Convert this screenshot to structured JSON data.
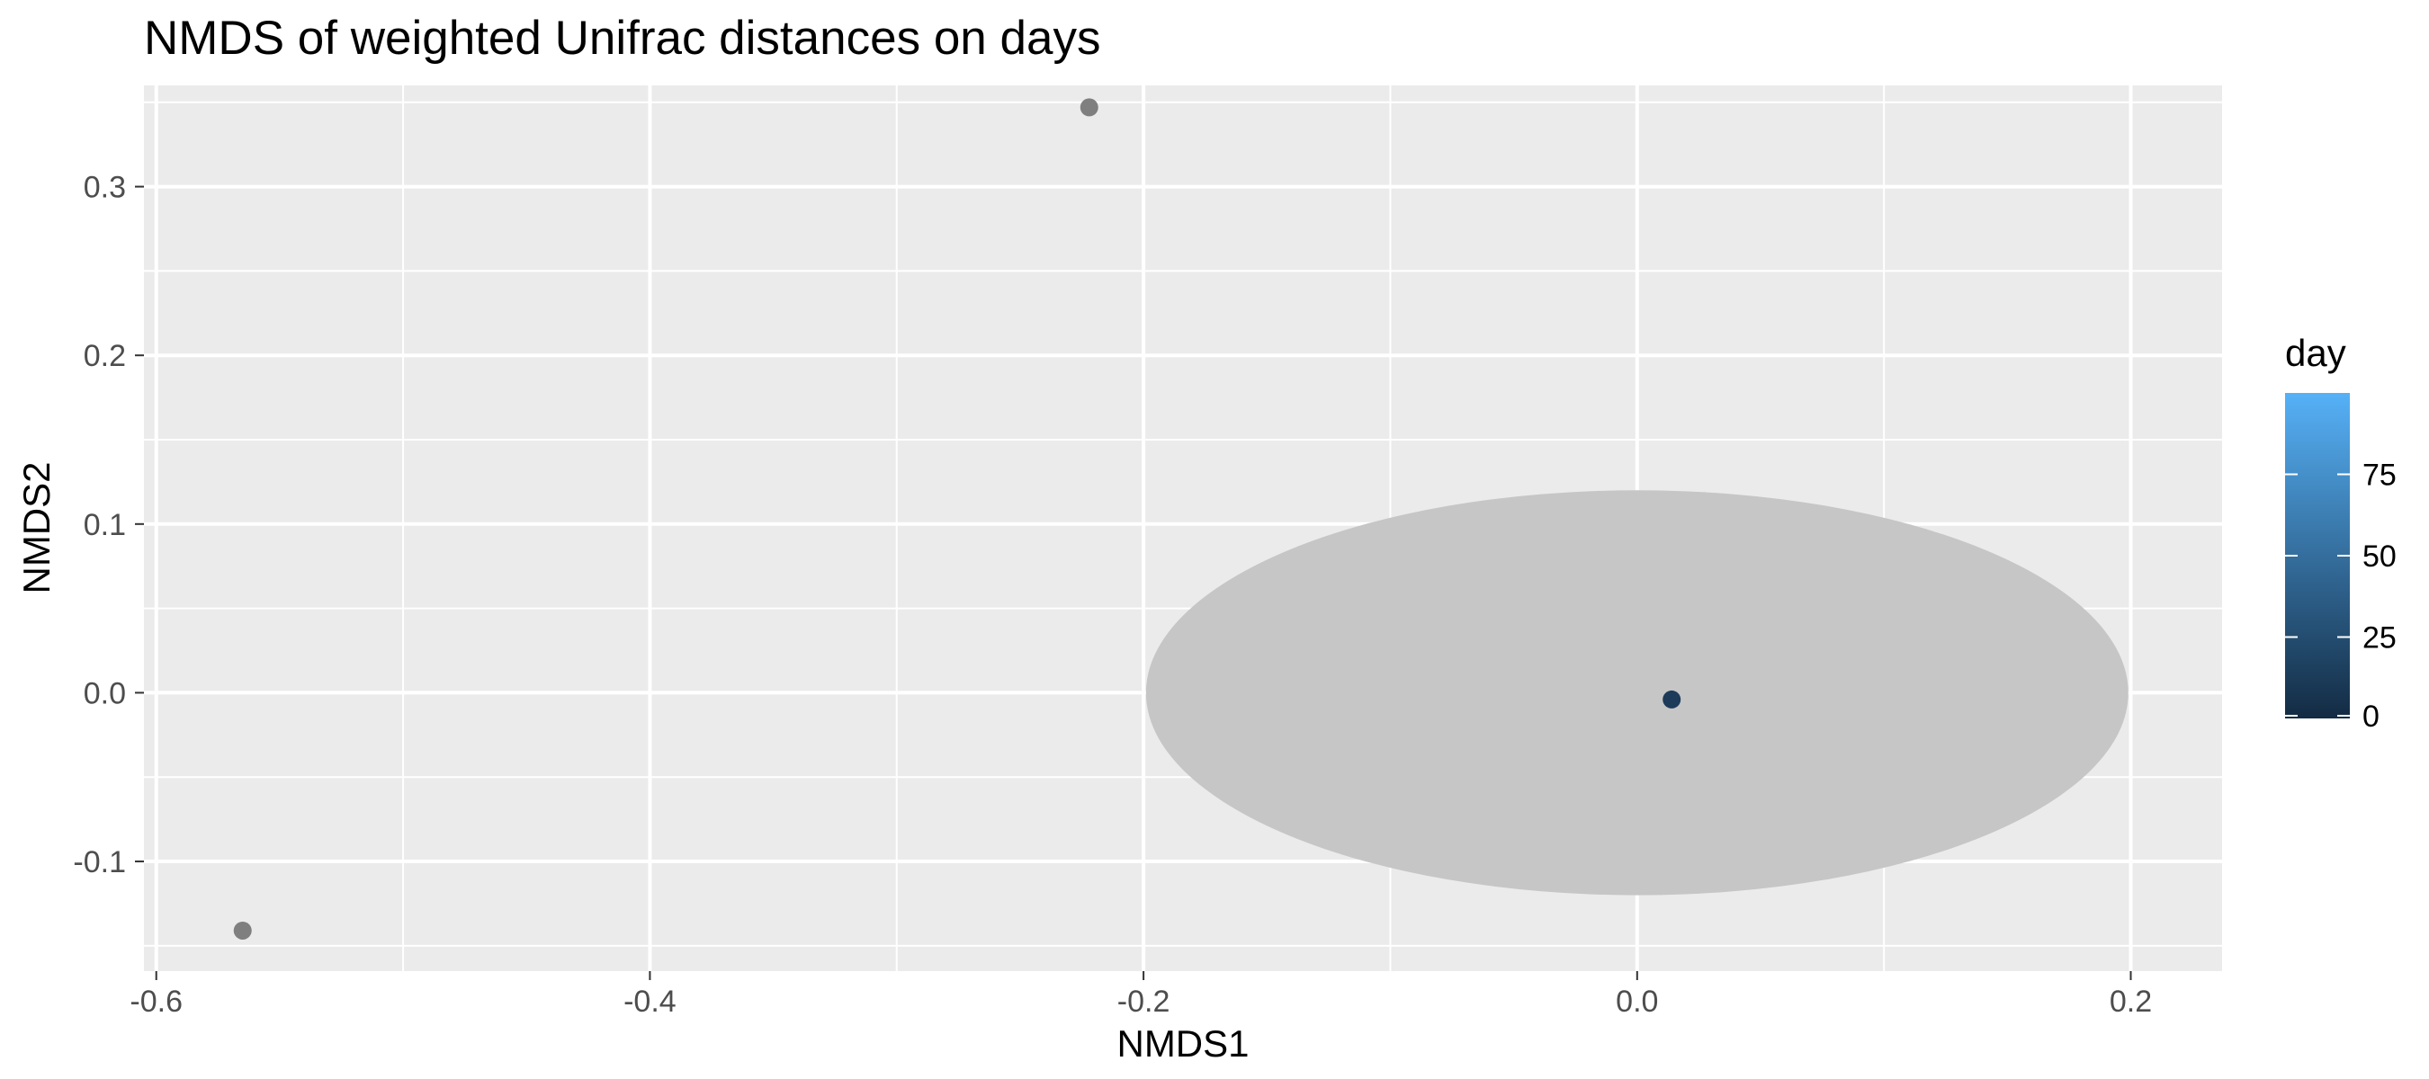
{
  "chart_data": {
    "type": "scatter",
    "title": "NMDS of weighted Unifrac distances on days",
    "xlabel": "NMDS1",
    "ylabel": "NMDS2",
    "xlim": [
      -0.605,
      0.237
    ],
    "ylim": [
      -0.165,
      0.36
    ],
    "x_ticks": [
      -0.6,
      -0.4,
      -0.2,
      0.0,
      0.2
    ],
    "x_tick_labels": [
      "-0.6",
      "-0.4",
      "-0.2",
      "0.0",
      "0.2"
    ],
    "y_ticks": [
      -0.1,
      0.0,
      0.1,
      0.2,
      0.3
    ],
    "y_tick_labels": [
      "-0.1",
      "0.0",
      "0.1",
      "0.2",
      "0.3"
    ],
    "grid": true,
    "panel_background": "#ebebeb",
    "points": [
      {
        "x": -0.222,
        "y": 0.347,
        "day": null,
        "color": "#7f7f7f"
      },
      {
        "x": -0.565,
        "y": -0.141,
        "day": null,
        "color": "#7f7f7f"
      },
      {
        "x": 0.014,
        "y": -0.004,
        "day": 0,
        "color": "#1c3a5a"
      }
    ],
    "ellipse": {
      "cx": 0.0,
      "cy": 0.0,
      "rx": 0.199,
      "ry": 0.12,
      "color": "#c6c6c6"
    },
    "legend": {
      "title": "day",
      "placement": "right",
      "min": 0,
      "max": 100,
      "ticks": [
        0,
        25,
        50,
        75
      ],
      "tick_labels": [
        "0",
        "25",
        "50",
        "75"
      ],
      "color_low": "#132b43",
      "color_high": "#56b1f7"
    }
  }
}
